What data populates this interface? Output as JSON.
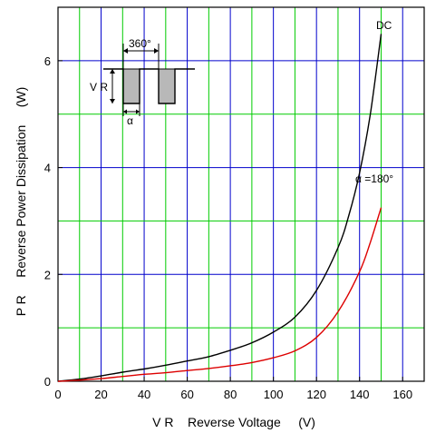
{
  "chart_data": {
    "type": "line",
    "xlabel": "V R    Reverse Voltage     (V)",
    "ylabel": "P R     Reverse Power Dissipation     (W)",
    "xlim": [
      0,
      170
    ],
    "ylim": [
      0,
      7
    ],
    "x_ticks": [
      0,
      20,
      40,
      60,
      80,
      100,
      120,
      140,
      160
    ],
    "y_ticks": [
      0,
      2,
      4,
      6
    ],
    "grid": {
      "major_color": "#0000cc",
      "minor_color": "#00cc00",
      "x_major_step": 20,
      "x_minor_offset": 10,
      "y_major_step": 2,
      "y_minor_offset": 1
    },
    "series": [
      {
        "name": "DC",
        "color": "#000000",
        "x": [
          0,
          10,
          20,
          30,
          40,
          50,
          60,
          70,
          80,
          90,
          100,
          110,
          120,
          130,
          135,
          140,
          145,
          150
        ],
        "y": [
          0,
          0.04,
          0.1,
          0.17,
          0.23,
          0.3,
          0.38,
          0.46,
          0.58,
          0.72,
          0.92,
          1.2,
          1.7,
          2.5,
          3.1,
          3.9,
          5.0,
          6.5
        ]
      },
      {
        "name": "α =180°",
        "color": "#dd0000",
        "x": [
          0,
          10,
          20,
          30,
          40,
          50,
          60,
          70,
          80,
          90,
          100,
          110,
          120,
          130,
          140,
          145,
          150
        ],
        "y": [
          0,
          0.02,
          0.05,
          0.09,
          0.13,
          0.16,
          0.2,
          0.24,
          0.29,
          0.35,
          0.44,
          0.57,
          0.82,
          1.3,
          2.05,
          2.6,
          3.25
        ]
      }
    ],
    "inset": {
      "period_label": "360°",
      "voltage_label": "V R",
      "angle_label": "α"
    }
  }
}
